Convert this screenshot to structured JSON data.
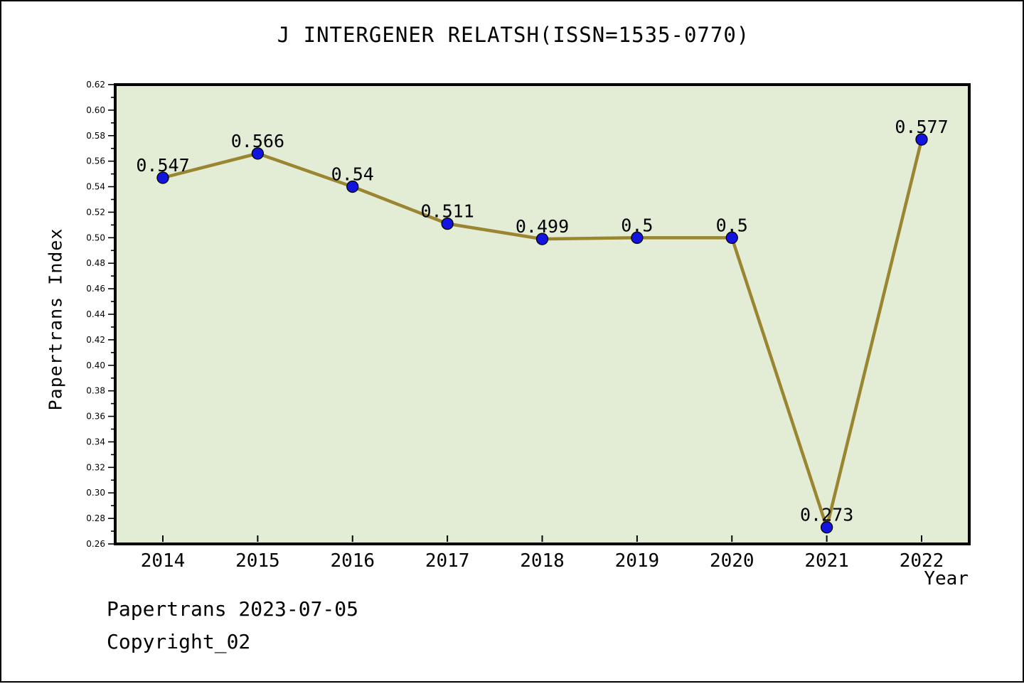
{
  "chart_data": {
    "type": "line",
    "title": "J INTERGENER RELATSH(ISSN=1535-0770)",
    "xlabel": "Year",
    "ylabel": "Papertrans Index",
    "categories": [
      "2014",
      "2015",
      "2016",
      "2017",
      "2018",
      "2019",
      "2020",
      "2021",
      "2022"
    ],
    "values": [
      0.547,
      0.566,
      0.54,
      0.511,
      0.499,
      0.5,
      0.5,
      0.273,
      0.577
    ],
    "point_labels": [
      "0.547",
      "0.566",
      "0.54",
      "0.511",
      "0.499",
      "0.5",
      "0.5",
      "0.273",
      "0.577"
    ],
    "ylim": [
      0.26,
      0.62
    ],
    "y_major_tick_labels": [
      "0.26",
      "0.28",
      "0.30",
      "0.32",
      "0.34",
      "0.36",
      "0.38",
      "0.40",
      "0.42",
      "0.44",
      "0.46",
      "0.48",
      "0.50",
      "0.52",
      "0.54",
      "0.56",
      "0.58",
      "0.60",
      "0.62"
    ],
    "y_minor_step": 0.01,
    "grid": false,
    "legend": "none",
    "colors": {
      "line": "#9A8530",
      "marker_fill": "#1414E0",
      "marker_edge": "#000000",
      "plot_background": "#E3EDD6",
      "axis": "#000000",
      "text": "#000000",
      "page_background": "#FFFFFF"
    }
  },
  "footer": {
    "line1": "Papertrans 2023-07-05",
    "line2": "Copyright_02"
  }
}
